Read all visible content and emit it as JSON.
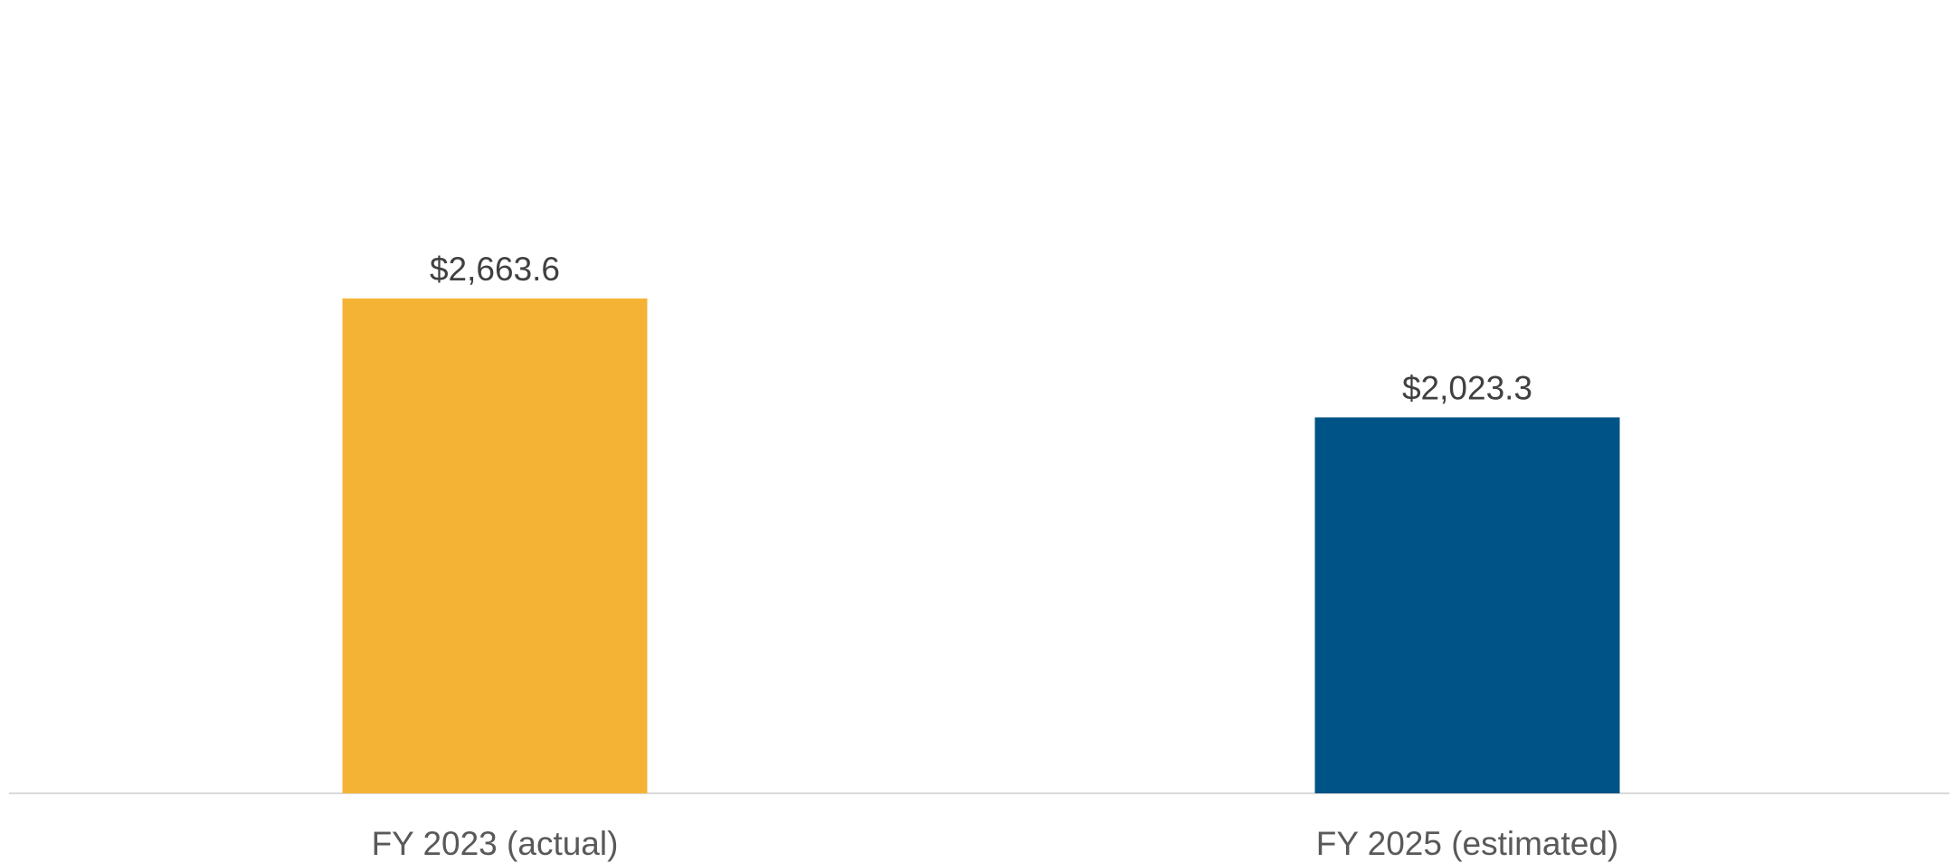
{
  "chart_data": {
    "type": "bar",
    "categories": [
      "FY 2023 (actual)",
      "FY 2025 (estimated)"
    ],
    "values": [
      2663.6,
      2023.3
    ],
    "data_labels": [
      "$2,663.6",
      "$2,023.3"
    ],
    "bar_colors": [
      "#F5B335",
      "#005386"
    ],
    "axis_color": "#D9D9D9",
    "ylim": [
      0,
      2700
    ],
    "grid": false,
    "legend": "none"
  }
}
